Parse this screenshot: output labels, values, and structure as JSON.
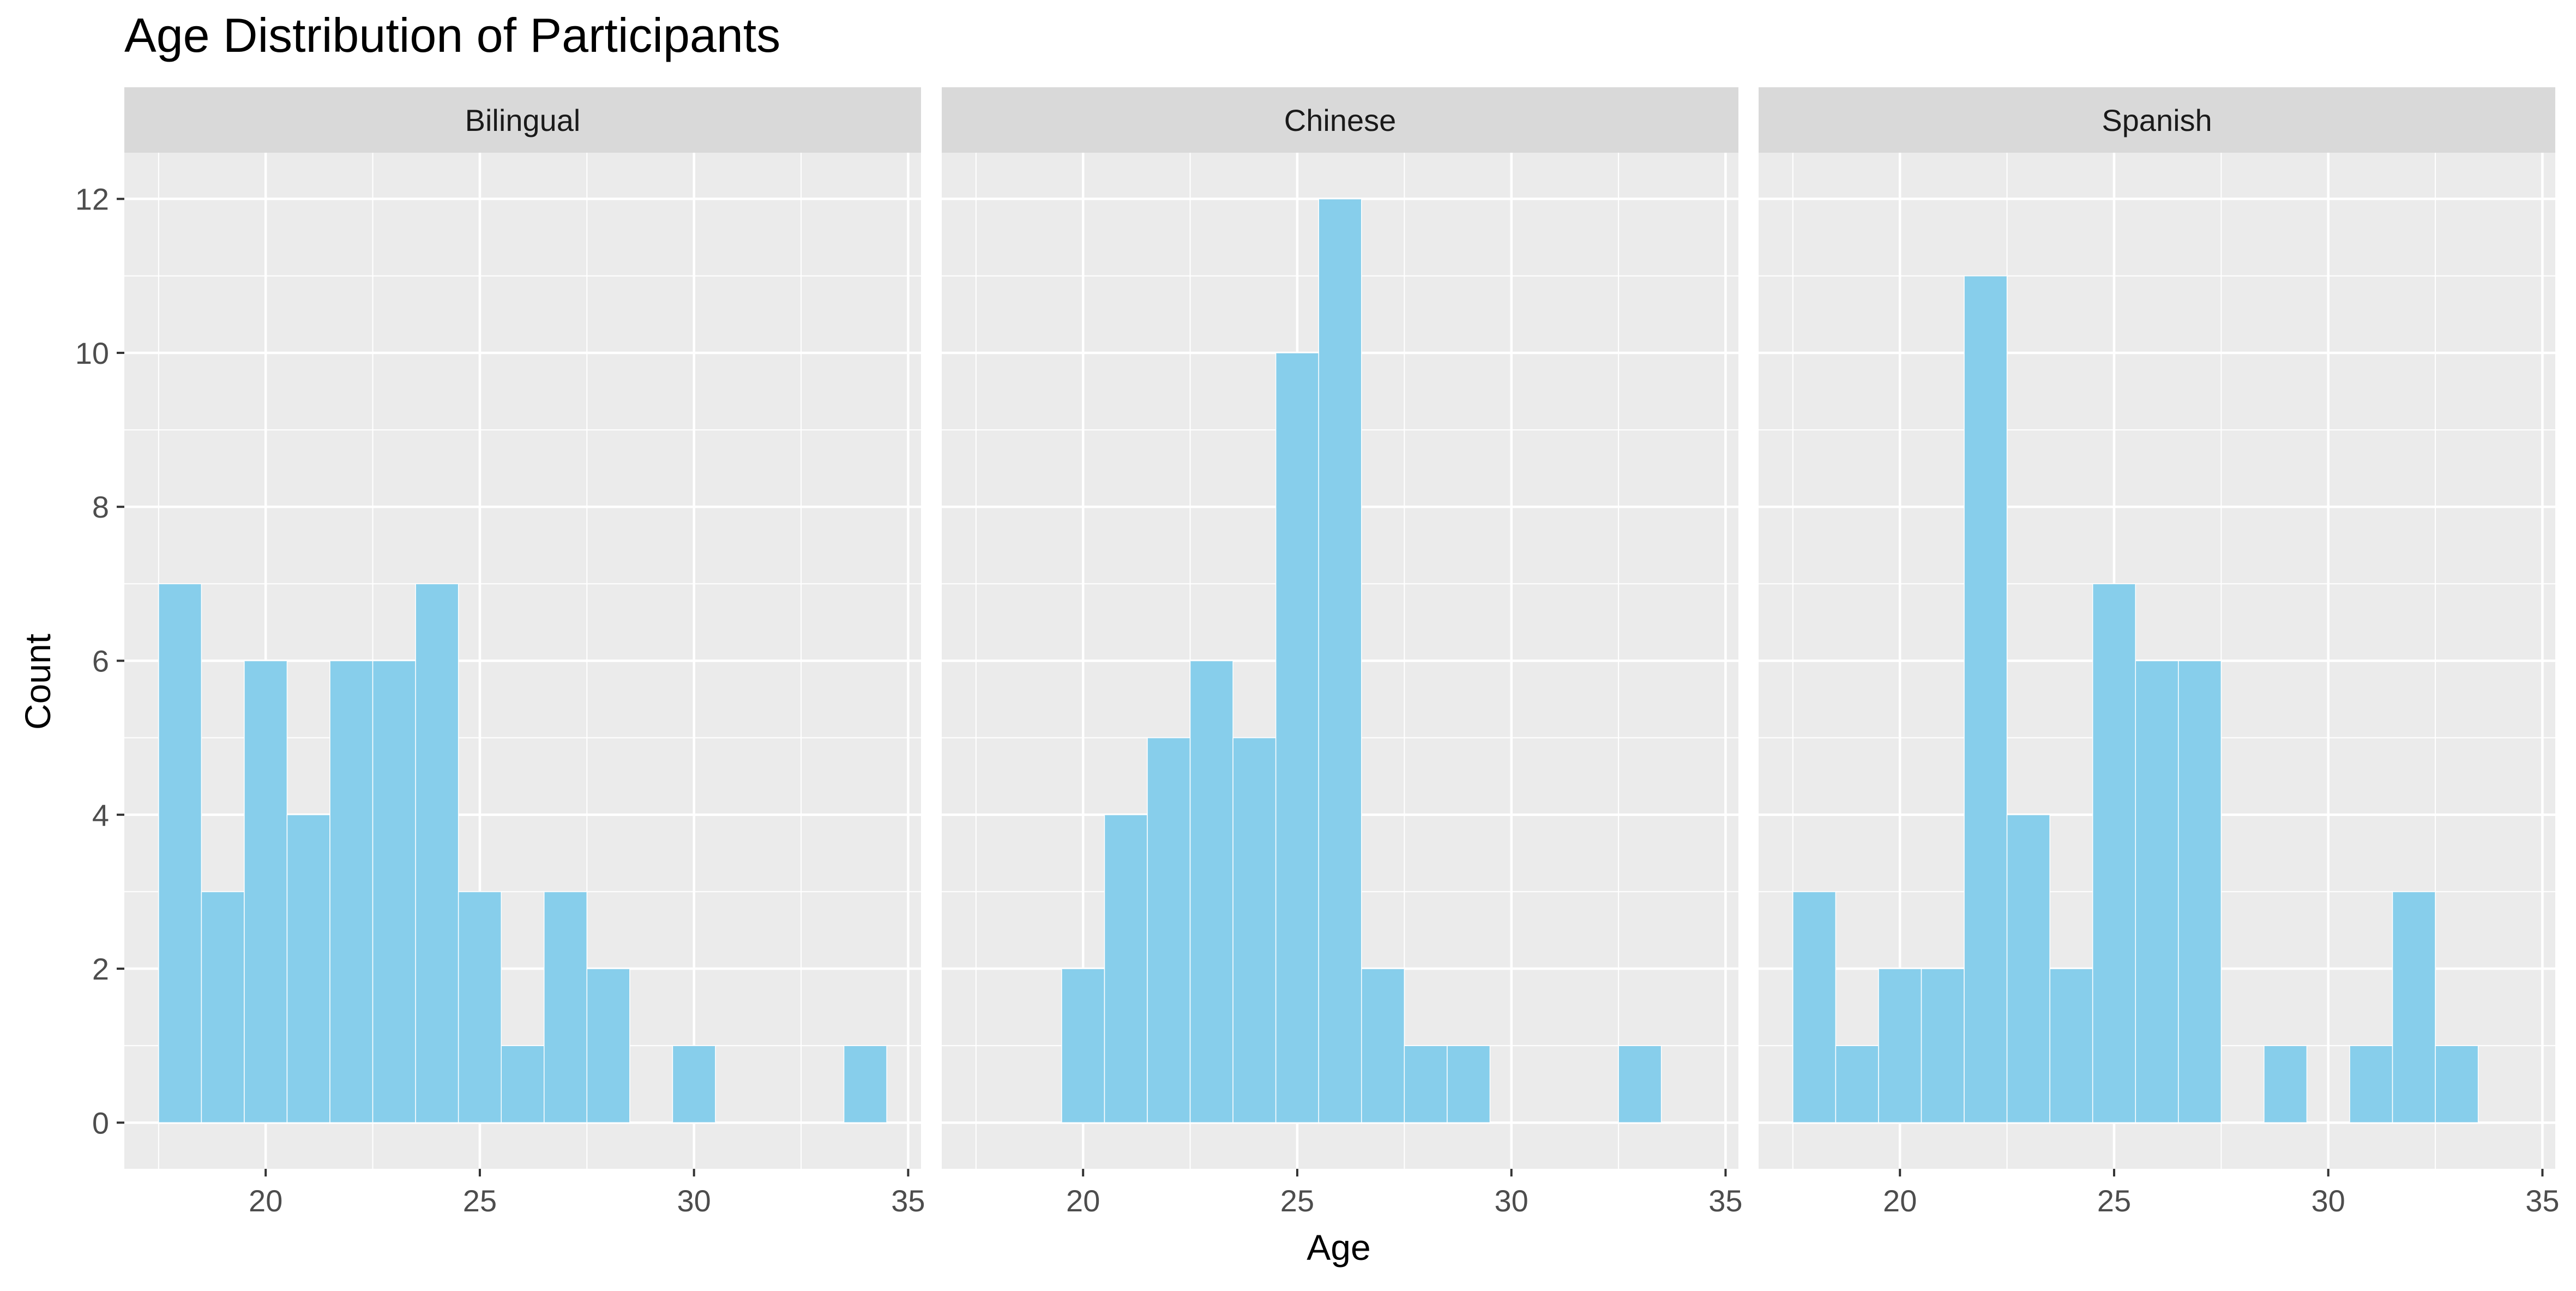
{
  "chart_data": {
    "type": "histogram",
    "title": "Age Distribution of Participants",
    "xlabel": "Age",
    "ylabel": "Count",
    "xlim": [
      16.7,
      35.3
    ],
    "ylim": [
      -0.6,
      12.6
    ],
    "x_ticks": [
      20,
      25,
      30,
      35
    ],
    "y_ticks": [
      0,
      2,
      4,
      6,
      8,
      10,
      12
    ],
    "bin_width": 1,
    "grid": true,
    "bar_color": "#87CEEB",
    "bar_outline": "#ffffff",
    "panel_background": "#EBEBEB",
    "strip_background": "#D9D9D9",
    "facets": [
      {
        "name": "Bilingual",
        "bins": [
          {
            "x": 18,
            "count": 7
          },
          {
            "x": 19,
            "count": 3
          },
          {
            "x": 20,
            "count": 6
          },
          {
            "x": 21,
            "count": 4
          },
          {
            "x": 22,
            "count": 6
          },
          {
            "x": 23,
            "count": 6
          },
          {
            "x": 24,
            "count": 7
          },
          {
            "x": 25,
            "count": 3
          },
          {
            "x": 26,
            "count": 1
          },
          {
            "x": 27,
            "count": 3
          },
          {
            "x": 28,
            "count": 2
          },
          {
            "x": 30,
            "count": 1
          },
          {
            "x": 34,
            "count": 1
          }
        ]
      },
      {
        "name": "Chinese",
        "bins": [
          {
            "x": 20,
            "count": 2
          },
          {
            "x": 21,
            "count": 4
          },
          {
            "x": 22,
            "count": 5
          },
          {
            "x": 23,
            "count": 6
          },
          {
            "x": 24,
            "count": 5
          },
          {
            "x": 25,
            "count": 10
          },
          {
            "x": 26,
            "count": 12
          },
          {
            "x": 27,
            "count": 2
          },
          {
            "x": 28,
            "count": 1
          },
          {
            "x": 29,
            "count": 1
          },
          {
            "x": 33,
            "count": 1
          }
        ]
      },
      {
        "name": "Spanish",
        "bins": [
          {
            "x": 18,
            "count": 3
          },
          {
            "x": 19,
            "count": 1
          },
          {
            "x": 20,
            "count": 2
          },
          {
            "x": 21,
            "count": 2
          },
          {
            "x": 22,
            "count": 11
          },
          {
            "x": 23,
            "count": 4
          },
          {
            "x": 24,
            "count": 2
          },
          {
            "x": 25,
            "count": 7
          },
          {
            "x": 26,
            "count": 6
          },
          {
            "x": 27,
            "count": 6
          },
          {
            "x": 29,
            "count": 1
          },
          {
            "x": 31,
            "count": 1
          },
          {
            "x": 32,
            "count": 3
          },
          {
            "x": 33,
            "count": 1
          }
        ]
      }
    ]
  }
}
